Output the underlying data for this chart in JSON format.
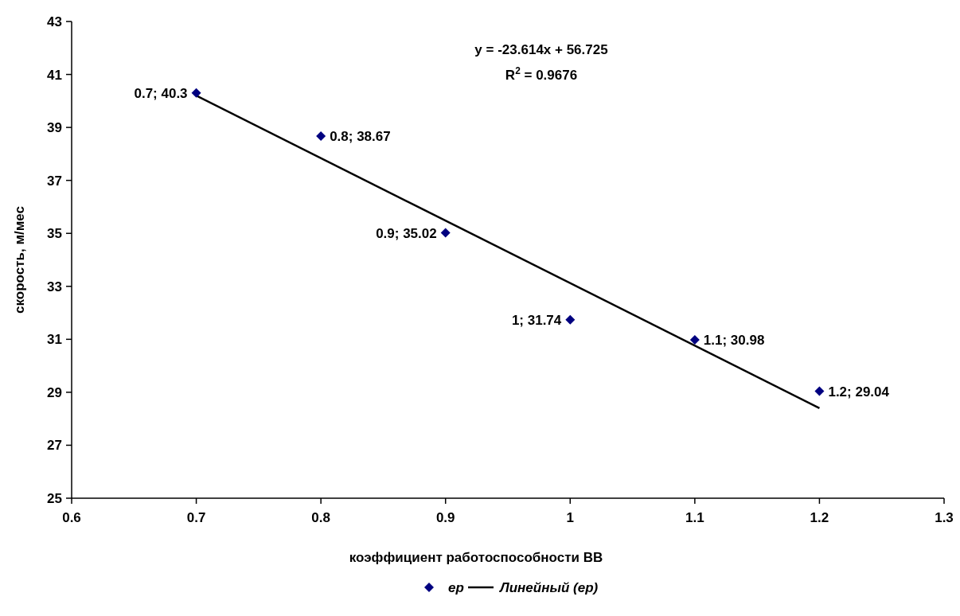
{
  "chart_data": {
    "type": "scatter",
    "xlabel": "коэффициент работоспособности ВВ",
    "ylabel": "скорость, м/мес",
    "xlim": [
      0.6,
      1.3
    ],
    "xticks": [
      0.6,
      0.7,
      0.8,
      0.9,
      1,
      1.1,
      1.2,
      1.3
    ],
    "ylim": [
      25,
      43
    ],
    "yticks": [
      25,
      27,
      29,
      31,
      33,
      35,
      37,
      39,
      41,
      43
    ],
    "grid": false,
    "legend": "bottom",
    "annotations": [
      "y = -23.614x + 56.725",
      "R$^{2}$ = 0.9676"
    ],
    "series": [
      {
        "name": "ер",
        "marker": "diamond",
        "color": "#000080",
        "x": [
          0.7,
          0.8,
          0.9,
          1,
          1.1,
          1.2
        ],
        "values": [
          40.3,
          38.67,
          35.02,
          31.74,
          30.98,
          29.04
        ],
        "value_labels": [
          "0.7; 40.3",
          "0.8; 38.67",
          "0.9; 35.02",
          "1; 31.74",
          "1.1; 30.98",
          "1.2; 29.04"
        ]
      },
      {
        "name": "Линейный (ер)",
        "type": "line",
        "marker": "none",
        "line_style": "solid",
        "color": "#000000",
        "x": [
          0.7,
          1.2
        ],
        "values": [
          40.2,
          28.4
        ]
      }
    ]
  }
}
